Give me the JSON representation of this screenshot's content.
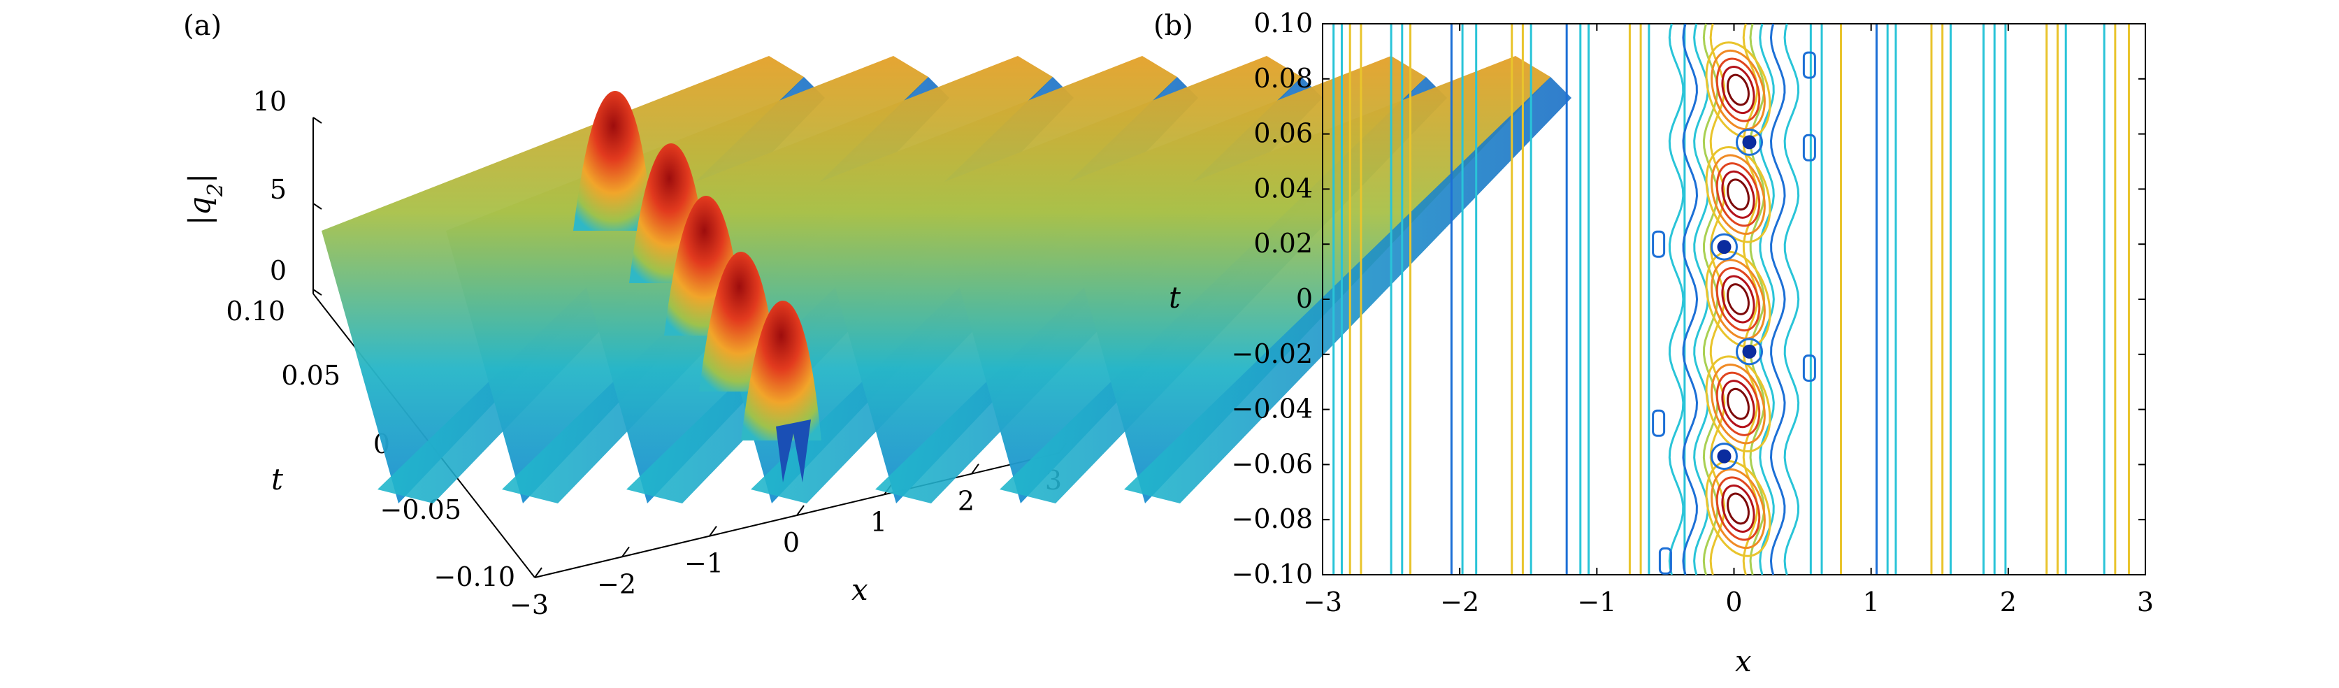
{
  "panels": {
    "a_label": "(a)",
    "b_label": "(b)"
  },
  "chart_data": [
    {
      "type": "surface",
      "panel": "(a)",
      "xlabel": "x",
      "ylabel": "t",
      "zlabel": "|q2|",
      "zlabel_main": "|q",
      "zlabel_sub": "2",
      "zlabel_close": "|",
      "xlim": [
        -3,
        3
      ],
      "ylim": [
        -0.1,
        0.1
      ],
      "zlim": [
        0,
        10
      ],
      "x_ticks": [
        "−3",
        "−2",
        "−1",
        "0",
        "1",
        "2",
        "3"
      ],
      "t_ticks": [
        "−0.10",
        "−0.05",
        "0",
        "0.05",
        "0.10"
      ],
      "z_ticks": [
        "0",
        "5",
        "10"
      ],
      "background_wave": {
        "period_x": 0.95,
        "min": 1.5,
        "max": 6.3
      },
      "central_peaks": {
        "x": 0,
        "t": [
          -0.08,
          -0.04,
          0.0,
          0.04,
          0.08
        ],
        "height": 8.5
      },
      "colormap": "jet"
    },
    {
      "type": "contour",
      "panel": "(b)",
      "xlabel": "x",
      "ylabel": "t",
      "xlim": [
        -3,
        3
      ],
      "ylim": [
        -0.1,
        0.1
      ],
      "x_ticks": [
        "−3",
        "−2",
        "−1",
        "0",
        "1",
        "2",
        "3"
      ],
      "y_ticks": [
        "0.10",
        "0.08",
        "0.06",
        "0.04",
        "0.02",
        "0",
        "−0.02",
        "−0.04",
        "−0.06",
        "−0.08",
        "−0.10"
      ],
      "y_tick_values": [
        0.1,
        0.08,
        0.06,
        0.04,
        0.02,
        0,
        -0.02,
        -0.04,
        -0.06,
        -0.08,
        -0.1
      ],
      "vertical_contours_x": [
        -2.92,
        -2.86,
        -2.8,
        -2.72,
        -2.5,
        -2.42,
        -2.36,
        -2.06,
        -1.98,
        -1.88,
        -1.62,
        -1.54,
        -1.48,
        -1.22,
        -1.12,
        -1.06,
        -0.76,
        -0.68,
        -0.62,
        -0.36,
        0.56,
        0.64,
        0.78,
        1.04,
        1.12,
        1.18,
        1.44,
        1.52,
        1.58,
        1.82,
        1.9,
        1.98,
        2.28,
        2.36,
        2.42,
        2.7,
        2.78,
        2.88
      ],
      "vertical_contour_colors": [
        "#29c4d8",
        "#29c4d8",
        "#e9c42c",
        "#e9c42c",
        "#29c4d8",
        "#29c4d8",
        "#e9c42c",
        "#1c6fd6",
        "#29c4d8",
        "#29c4d8",
        "#e9c42c",
        "#e9c42c",
        "#29c4d8",
        "#1c6fd6",
        "#29c4d8",
        "#29c4d8",
        "#e9c42c",
        "#e9c42c",
        "#29c4d8",
        "#29c4d8",
        "#29c4d8",
        "#29c4d8",
        "#e9c42c",
        "#1c6fd6",
        "#29c4d8",
        "#29c4d8",
        "#e9c42c",
        "#e9c42c",
        "#29c4d8",
        "#29c4d8",
        "#29c4d8",
        "#29c4d8",
        "#e9c42c",
        "#e9c42c",
        "#29c4d8",
        "#29c4d8",
        "#e9c42c",
        "#e9c42c"
      ],
      "peak_centers_t": [
        -0.076,
        -0.038,
        0.0,
        0.038,
        0.076
      ],
      "colormap": "jet"
    }
  ]
}
